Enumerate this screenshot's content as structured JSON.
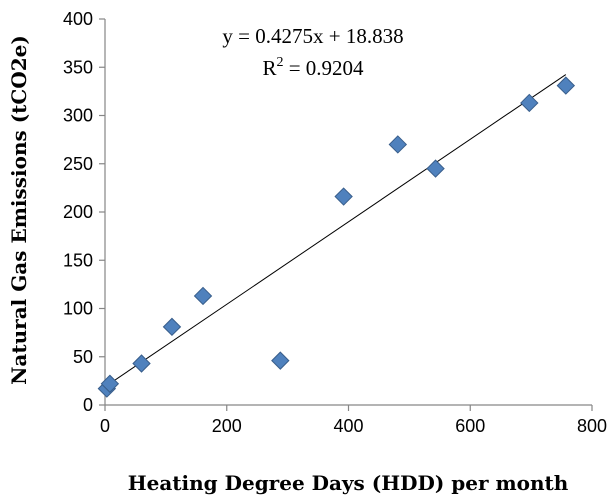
{
  "chart_data": {
    "type": "scatter",
    "xlabel": "Heating Degree Days (HDD) per month",
    "ylabel": "Natural Gas Emissions (tCO2e)",
    "xlim": [
      0,
      800
    ],
    "ylim": [
      0,
      400
    ],
    "x_ticks": [
      "0",
      "200",
      "400",
      "600",
      "800"
    ],
    "y_ticks": [
      "0",
      "50",
      "100",
      "150",
      "200",
      "250",
      "300",
      "350",
      "400"
    ],
    "grid": false,
    "legend": "none",
    "marker": "diamond",
    "marker_color": "#4f81bd",
    "points": [
      {
        "x": 3,
        "y": 17
      },
      {
        "x": 8,
        "y": 22
      },
      {
        "x": 60,
        "y": 43
      },
      {
        "x": 110,
        "y": 81
      },
      {
        "x": 161,
        "y": 113
      },
      {
        "x": 288,
        "y": 46
      },
      {
        "x": 392,
        "y": 216
      },
      {
        "x": 481,
        "y": 270
      },
      {
        "x": 543,
        "y": 245
      },
      {
        "x": 697,
        "y": 313
      },
      {
        "x": 757,
        "y": 331
      }
    ],
    "trendline": {
      "slope": 0.4275,
      "intercept": 18.838,
      "x_range": [
        0,
        757
      ],
      "color": "#000000",
      "equation": "y = 0.4275x + 18.838",
      "r2_prefix": "R",
      "r2_sup": "2",
      "r2_value": " = 0.9204"
    }
  }
}
